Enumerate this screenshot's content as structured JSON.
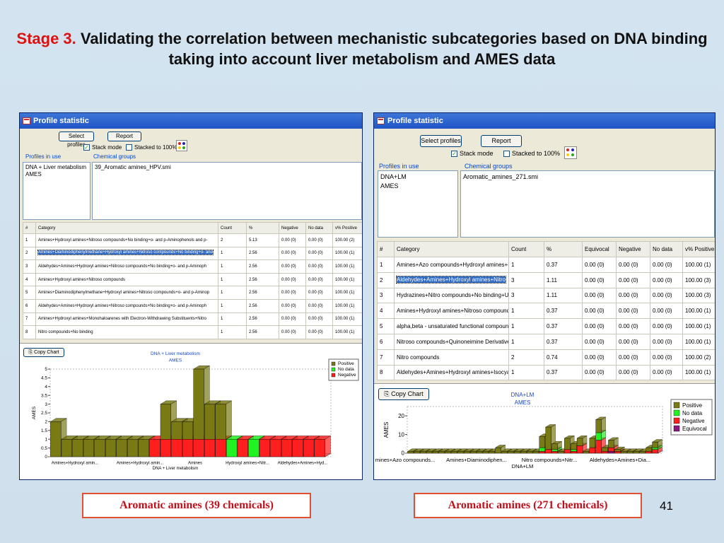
{
  "slide": {
    "title_stage": "Stage 3.",
    "title_text": "Validating the correlation between mechanistic subcategories based on DNA binding taking into account liver metabolism and AMES data",
    "page_number": "41"
  },
  "windows": [
    {
      "title": "Profile statistic",
      "buttons": {
        "select_profiles": "Select profiles",
        "report": "Report",
        "copy_chart": "Copy Chart"
      },
      "checkboxes": {
        "stack_mode": "Stack mode",
        "stack_mode_checked": "✓",
        "stacked_100": "Stacked to 100%"
      },
      "profiles_label": "Profiles in use",
      "profiles": [
        "DNA + Liver metabolism",
        "AMES"
      ],
      "chemical_groups_label": "Chemical groups",
      "chemical_groups": [
        "39_Aromatic amines_HPV.smi"
      ],
      "columns": [
        "#",
        "Category",
        "Count",
        "%",
        "Negative",
        "No data",
        "v% Positive"
      ],
      "rows": [
        [
          "1",
          "Amines+Hydroxyl amines+Nitroso compounds+No binding+o- and p-Aminophenols and p-",
          "2",
          "5.13",
          "0.00 (0)",
          "0.00 (0)",
          "100.00 (2)"
        ],
        [
          "2",
          "Amines+Diaminodiphenylmethane+Hydroxyl amines+Nitroso compounds+No binding+o- and",
          "1",
          "2.56",
          "0.00 (0)",
          "0.00 (0)",
          "100.00 (1)"
        ],
        [
          "3",
          "Aldehydes+Amines+Hydroxyl amines+Nitroso compounds+No binding+o- and p-Aminoph",
          "1",
          "2.56",
          "0.00 (0)",
          "0.00 (0)",
          "100.00 (1)"
        ],
        [
          "4",
          "Amines+Hydroxyl amines+Nitroso compounds",
          "1",
          "2.56",
          "0.00 (0)",
          "0.00 (0)",
          "100.00 (1)"
        ],
        [
          "5",
          "Amines+Diaminodiphenylmethane+Hydroxyl amines+Nitroso compounds+o- and p-Aminop",
          "1",
          "2.56",
          "0.00 (0)",
          "0.00 (0)",
          "100.00 (1)"
        ],
        [
          "6",
          "Aldehydes+Amines+Hydroxyl amines+Nitroso compounds+No binding+o- and p-Aminoph",
          "1",
          "2.56",
          "0.00 (0)",
          "0.00 (0)",
          "100.00 (1)"
        ],
        [
          "7",
          "Amines+Hydroxyl amines+Monohaloarenes with Electron-Withdrawing Substituents+Nitro",
          "1",
          "2.56",
          "0.00 (0)",
          "0.00 (0)",
          "100.00 (1)"
        ],
        [
          "8",
          "Nitro compounds+No binding",
          "1",
          "2.56",
          "0.00 (0)",
          "0.00 (0)",
          "100.00 (1)"
        ]
      ],
      "selected_row": 1,
      "caption": "Aromatic amines (39 chemicals)"
    },
    {
      "title": "Profile statistic",
      "buttons": {
        "select_profiles": "Select profiles",
        "report": "Report",
        "copy_chart": "Copy Chart"
      },
      "checkboxes": {
        "stack_mode": "Stack mode",
        "stack_mode_checked": "✓",
        "stacked_100": "Stacked to 100%"
      },
      "profiles_label": "Profiles in use",
      "profiles": [
        "DNA+LM",
        "AMES"
      ],
      "chemical_groups_label": "Chemical groups",
      "chemical_groups": [
        "Aromatic_amines_271.smi"
      ],
      "columns": [
        "#",
        "Category",
        "Count",
        "%",
        "Equivocal",
        "Negative",
        "No data",
        "v% Positive"
      ],
      "rows": [
        [
          "1",
          "Amines+Azo compounds+Hydroxyl amines+N",
          "1",
          "0.37",
          "0.00 (0)",
          "0.00 (0)",
          "0.00 (0)",
          "100.00 (1)"
        ],
        [
          "2",
          "Aldehydes+Amines+Hydroxyl amines+Nitro",
          "3",
          "1.11",
          "0.00 (0)",
          "0.00 (0)",
          "0.00 (0)",
          "100.00 (3)"
        ],
        [
          "3",
          "Hydrazines+Nitro compounds+No binding+U",
          "3",
          "1.11",
          "0.00 (0)",
          "0.00 (0)",
          "0.00 (0)",
          "100.00 (3)"
        ],
        [
          "4",
          "Amines+Hydroxyl amines+Nitroso compound",
          "1",
          "0.37",
          "0.00 (0)",
          "0.00 (0)",
          "0.00 (0)",
          "100.00 (1)"
        ],
        [
          "5",
          "alpha,beta - unsaturated functional compoun",
          "1",
          "0.37",
          "0.00 (0)",
          "0.00 (0)",
          "0.00 (0)",
          "100.00 (1)"
        ],
        [
          "6",
          "Nitroso compounds+Quinoneimine Derivatives",
          "1",
          "0.37",
          "0.00 (0)",
          "0.00 (0)",
          "0.00 (0)",
          "100.00 (1)"
        ],
        [
          "7",
          "Nitro compounds",
          "2",
          "0.74",
          "0.00 (0)",
          "0.00 (0)",
          "0.00 (0)",
          "100.00 (2)"
        ],
        [
          "8",
          "Aldehydes+Amines+Hydroxyl amines+Isocya",
          "1",
          "0.37",
          "0.00 (0)",
          "0.00 (0)",
          "0.00 (0)",
          "100.00 (1)"
        ]
      ],
      "selected_row": 1,
      "caption": "Aromatic amines (271 chemicals)"
    }
  ],
  "colors": {
    "Negative": "#ff1f1f",
    "No data": "#21f221",
    "Positive": "#7a7a14",
    "Equivocal": "#8a1780"
  },
  "chart_data": [
    {
      "type": "bar",
      "title": "DNA + Liver metabolism",
      "subtitle": "AMES",
      "xlabel": "DNA + Liver metabolism",
      "ylabel": "AMES",
      "stacked": true,
      "ylim": [
        0,
        5
      ],
      "yticks": [
        "0",
        "0.5",
        "1",
        "1.5",
        "2",
        "2.5",
        "3",
        "3.5",
        "4",
        "4.5",
        "5"
      ],
      "xtick_labels": [
        "Amines+Hydroxyl amin...",
        "Amines+Hydroxyl amin...",
        "Amines",
        "Hydroxyl amines+Nitr...",
        "Aldehydes+Amines+Hyd..."
      ],
      "legend_position": "top-right",
      "series": [
        {
          "name": "Negative",
          "values": [
            0,
            0,
            0,
            0,
            0,
            0,
            0,
            0,
            0,
            1,
            1,
            1,
            1,
            1,
            1,
            1,
            0,
            1,
            0,
            1,
            1,
            1,
            1,
            1,
            1
          ]
        },
        {
          "name": "No data",
          "values": [
            0,
            0,
            0,
            0,
            0,
            0,
            0,
            0,
            0,
            0,
            0,
            0,
            0,
            0,
            0,
            0,
            1,
            0,
            1,
            0,
            0,
            0,
            0,
            0,
            0
          ]
        },
        {
          "name": "Positive",
          "values": [
            2,
            1,
            1,
            1,
            1,
            1,
            1,
            1,
            1,
            0,
            2,
            1,
            1,
            4,
            2,
            2,
            0,
            0,
            0,
            0,
            0,
            0,
            0,
            0,
            0
          ]
        }
      ]
    },
    {
      "type": "bar",
      "title": "DNA+LM",
      "subtitle": "AMES",
      "xlabel": "DNA+LM",
      "ylabel": "AMES",
      "stacked": true,
      "ylim": [
        0,
        25
      ],
      "yticks": [
        "0",
        "10",
        "20"
      ],
      "xtick_labels": [
        "mines+Azo compounds...",
        "Amines+Diaminodiphen...",
        "Nitro compounds+Nitr...",
        "Aldehydes+Amines+Dia..."
      ],
      "legend_position": "top-right",
      "series": [
        {
          "name": "Equivocal",
          "values": [
            0,
            0,
            0,
            0,
            0,
            0,
            0,
            0,
            0,
            0,
            0,
            0,
            0,
            0,
            0,
            0,
            0,
            0,
            0,
            0,
            0,
            0,
            0,
            0,
            0,
            0,
            0,
            0,
            0,
            0,
            0,
            0,
            1,
            0,
            0,
            0,
            0,
            0,
            0,
            0
          ]
        },
        {
          "name": "Negative",
          "values": [
            0,
            0,
            0,
            0,
            0,
            0,
            0,
            0,
            0,
            0,
            0,
            0,
            0,
            0,
            0,
            0,
            0,
            0,
            0,
            0,
            0,
            1,
            2,
            1,
            0,
            2,
            1,
            4,
            0,
            3,
            7,
            1,
            2,
            1,
            0,
            0,
            0,
            0,
            1,
            2
          ]
        },
        {
          "name": "No data",
          "values": [
            0,
            0,
            0,
            0,
            0,
            0,
            0,
            0,
            0,
            0,
            0,
            0,
            0,
            0,
            0,
            0,
            0,
            0,
            0,
            0,
            0,
            2,
            0,
            1,
            0,
            0,
            1,
            0,
            0,
            0,
            4,
            0,
            0,
            0,
            0,
            0,
            0,
            0,
            0,
            1
          ]
        },
        {
          "name": "Positive",
          "values": [
            1,
            1,
            1,
            1,
            1,
            1,
            1,
            1,
            1,
            1,
            1,
            1,
            1,
            1,
            3,
            1,
            1,
            1,
            1,
            1,
            1,
            6,
            12,
            3,
            1,
            6,
            3,
            4,
            1,
            5,
            7,
            2,
            4,
            1,
            1,
            1,
            1,
            1,
            2,
            3
          ]
        }
      ]
    }
  ]
}
